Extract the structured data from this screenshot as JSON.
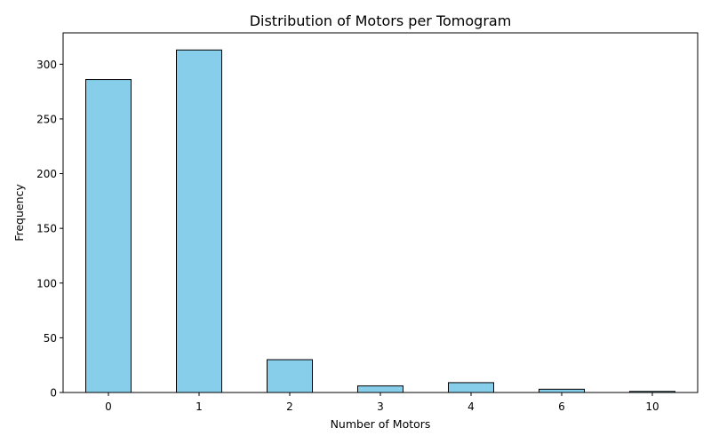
{
  "chart_data": {
    "type": "bar",
    "title": "Distribution of Motors per Tomogram",
    "xlabel": "Number of Motors",
    "ylabel": "Frequency",
    "categories": [
      "0",
      "1",
      "2",
      "3",
      "4",
      "6",
      "10"
    ],
    "values": [
      286,
      313,
      30,
      6,
      9,
      3,
      1
    ],
    "ylim": [
      0,
      328.65
    ],
    "yticks": [
      0,
      50,
      100,
      150,
      200,
      250,
      300
    ],
    "bar_color": "#87CEEB",
    "edge_color": "#000000",
    "grid": false,
    "legend": "none"
  }
}
